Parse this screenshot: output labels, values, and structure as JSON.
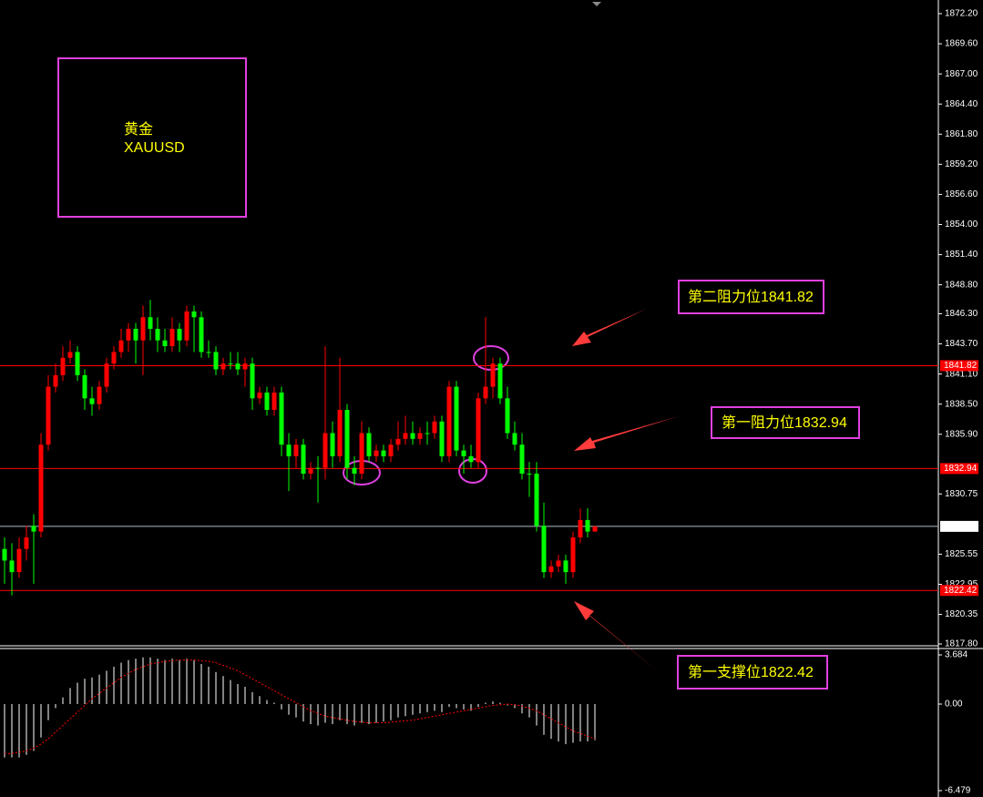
{
  "chart_data": [
    {
      "type": "candlestick",
      "title": "黄金",
      "subtitle": "XAUUSD",
      "up_color": "#ff0000",
      "down_color": "#00ff00",
      "ylim": [
        1817.8,
        1872.2
      ],
      "yticks": [
        {
          "value": 1872.2,
          "label": "1872.20"
        },
        {
          "value": 1869.6,
          "label": "1869.60"
        },
        {
          "value": 1867,
          "label": "1867.00"
        },
        {
          "value": 1864.4,
          "label": "1864.40"
        },
        {
          "value": 1861.8,
          "label": "1861.80"
        },
        {
          "value": 1859.2,
          "label": "1859.20"
        },
        {
          "value": 1856.6,
          "label": "1856.60"
        },
        {
          "value": 1854,
          "label": "1854.00"
        },
        {
          "value": 1851.4,
          "label": "1851.40"
        },
        {
          "value": 1848.8,
          "label": "1848.80"
        },
        {
          "value": 1846.3,
          "label": "1846.30"
        },
        {
          "value": 1843.7,
          "label": "1843.70"
        },
        {
          "value": 1841.1,
          "label": "1841.10"
        },
        {
          "value": 1838.5,
          "label": "1838.50"
        },
        {
          "value": 1835.9,
          "label": "1835.90"
        },
        1830.75,
        1825.55,
        1822.95,
        1820.35,
        {
          "value": 1817.8,
          "label": "1817.80"
        }
      ],
      "levels": [
        {
          "value": 1841.82,
          "color": "#ff0000"
        },
        {
          "value": 1832.94,
          "color": "#ff0000"
        },
        {
          "value": 1827.95,
          "color": "#ffffff"
        },
        {
          "value": 1822.42,
          "color": "#ff0000"
        }
      ],
      "annotations": [
        "第二阻力位1841.82",
        "第一阻力位1832.94",
        "第一支撑位1822.42"
      ],
      "candles": [
        [
          1826,
          1827,
          1823,
          1825
        ],
        [
          1825,
          1826.5,
          1822,
          1824
        ],
        [
          1824,
          1827,
          1823.5,
          1826
        ],
        [
          1826,
          1828,
          1825,
          1827
        ],
        [
          1828,
          1829,
          1823,
          1827.5
        ],
        [
          1827.5,
          1836,
          1827,
          1835
        ],
        [
          1835,
          1841,
          1834.5,
          1840
        ],
        [
          1840,
          1842,
          1839.5,
          1841
        ],
        [
          1841,
          1843.5,
          1840.5,
          1842.5
        ],
        [
          1842.5,
          1844,
          1842,
          1843
        ],
        [
          1843,
          1843.5,
          1840.5,
          1841
        ],
        [
          1841,
          1841.5,
          1838,
          1839
        ],
        [
          1839,
          1840,
          1837.5,
          1838.5
        ],
        [
          1838.5,
          1840.5,
          1838,
          1840
        ],
        [
          1840,
          1842.5,
          1839.5,
          1842
        ],
        [
          1842,
          1843.5,
          1841.5,
          1843
        ],
        [
          1843,
          1845,
          1842.5,
          1844
        ],
        [
          1844,
          1845.5,
          1843,
          1845
        ],
        [
          1845,
          1845.5,
          1842,
          1844
        ],
        [
          1844,
          1847,
          1841,
          1846
        ],
        [
          1846,
          1847.5,
          1844,
          1845
        ],
        [
          1845,
          1846,
          1843,
          1844
        ],
        [
          1844,
          1845,
          1843,
          1843.5
        ],
        [
          1843.5,
          1846,
          1843,
          1845
        ],
        [
          1845,
          1845.5,
          1843,
          1844
        ],
        [
          1844,
          1847,
          1843.5,
          1846.5
        ],
        [
          1846.5,
          1847,
          1843,
          1846
        ],
        [
          1846,
          1846.5,
          1842.5,
          1843
        ],
        [
          1843,
          1844,
          1842.5,
          1843
        ],
        [
          1843,
          1843.5,
          1841,
          1841.5
        ],
        [
          1841.5,
          1842.5,
          1841,
          1842
        ],
        [
          1842,
          1843,
          1841.5,
          1842
        ],
        [
          1842,
          1843,
          1841,
          1841.5
        ],
        [
          1841.5,
          1842.5,
          1840,
          1842
        ],
        [
          1842,
          1842.5,
          1838,
          1839
        ],
        [
          1839,
          1840,
          1838.5,
          1839.5
        ],
        [
          1839.5,
          1840,
          1837.5,
          1838
        ],
        [
          1838,
          1840,
          1837.5,
          1839.5
        ],
        [
          1839.5,
          1840,
          1834,
          1835
        ],
        [
          1835,
          1836,
          1831,
          1834
        ],
        [
          1834,
          1835.5,
          1833,
          1835
        ],
        [
          1835,
          1835.5,
          1832,
          1832.5
        ],
        [
          1832.5,
          1833.5,
          1832,
          1833
        ],
        [
          1833,
          1834,
          1830,
          1833
        ],
        [
          1833,
          1843.5,
          1832,
          1836
        ],
        [
          1836,
          1837,
          1833,
          1834
        ],
        [
          1834,
          1842.5,
          1833.5,
          1838
        ],
        [
          1838,
          1838.5,
          1832,
          1833
        ],
        [
          1833,
          1834,
          1831.5,
          1832.5
        ],
        [
          1832.5,
          1837,
          1832,
          1836
        ],
        [
          1836,
          1836.5,
          1833.5,
          1834
        ],
        [
          1834,
          1835,
          1833.5,
          1834.5
        ],
        [
          1834.5,
          1835,
          1833.5,
          1834
        ],
        [
          1834,
          1835.5,
          1833.5,
          1835
        ],
        [
          1835,
          1837,
          1834.5,
          1835.5
        ],
        [
          1835.5,
          1837.5,
          1835,
          1836
        ],
        [
          1836,
          1837,
          1835,
          1835.5
        ],
        [
          1835.5,
          1836.5,
          1835,
          1836
        ],
        [
          1836,
          1837,
          1835,
          1836
        ],
        [
          1836,
          1837.5,
          1835.5,
          1837
        ],
        [
          1837,
          1837.5,
          1833.5,
          1834
        ],
        [
          1834,
          1840.5,
          1833.5,
          1840
        ],
        [
          1840,
          1840.5,
          1834,
          1834.5
        ],
        [
          1834.5,
          1835,
          1832.5,
          1834
        ],
        [
          1834,
          1835,
          1833,
          1833.5
        ],
        [
          1833.5,
          1839.5,
          1833,
          1839
        ],
        [
          1839,
          1846,
          1838.5,
          1840
        ],
        [
          1840,
          1842.5,
          1839,
          1842
        ],
        [
          1842,
          1842.5,
          1838.5,
          1839
        ],
        [
          1839,
          1840,
          1835.5,
          1836
        ],
        [
          1836,
          1837,
          1834.5,
          1835
        ],
        [
          1835,
          1836,
          1832,
          1832.5
        ],
        [
          1832.5,
          1833.5,
          1830.5,
          1832.5
        ],
        [
          1832.5,
          1833.5,
          1827.5,
          1828
        ],
        [
          1828,
          1830,
          1823.5,
          1824
        ],
        [
          1824,
          1825,
          1823.5,
          1824.5
        ],
        [
          1824.5,
          1825.5,
          1824,
          1825
        ],
        [
          1825,
          1825.5,
          1823,
          1824
        ],
        [
          1824,
          1827.5,
          1823.5,
          1827
        ],
        [
          1827,
          1829.5,
          1826.5,
          1828.5
        ],
        [
          1828.5,
          1829.5,
          1827,
          1827.5
        ],
        [
          1827.5,
          1828,
          1827.5,
          1827.95
        ]
      ]
    },
    {
      "type": "macd",
      "ylim": [
        -6.479,
        3.684
      ],
      "yticks": [
        3.684,
        {
          "value": 0,
          "label": "0.00"
        },
        -6.479
      ],
      "series": [
        {
          "type": "bar",
          "color": "#ffffff",
          "values": [
            -4,
            -4,
            -4,
            -3.8,
            -3.5,
            -2.5,
            -1.2,
            -0.3,
            0.5,
            1.2,
            1.6,
            1.9,
            2.0,
            2.2,
            2.5,
            2.8,
            3.1,
            3.3,
            3.4,
            3.5,
            3.5,
            3.4,
            3.3,
            3.4,
            3.3,
            3.4,
            3.3,
            3.0,
            2.8,
            2.4,
            2.1,
            1.8,
            1.5,
            1.3,
            0.9,
            0.6,
            0.3,
            0.1,
            -0.4,
            -0.8,
            -1.0,
            -1.3,
            -1.5,
            -1.6,
            -1.4,
            -1.5,
            -1.2,
            -1.5,
            -1.6,
            -1.4,
            -1.5,
            -1.4,
            -1.3,
            -1.2,
            -1.0,
            -0.9,
            -0.8,
            -0.7,
            -0.6,
            -0.5,
            -0.6,
            -0.2,
            -0.3,
            -0.4,
            -0.5,
            -0.2,
            0.1,
            0.2,
            0.1,
            -0.1,
            -0.3,
            -0.7,
            -1.0,
            -1.6,
            -2.3,
            -2.6,
            -2.8,
            -3.0,
            -2.9,
            -2.8,
            -2.8,
            -2.7
          ]
        },
        {
          "type": "line",
          "color": "#ff0000",
          "values": [
            -3.7,
            -3.7,
            -3.6,
            -3.5,
            -3.3,
            -3.0,
            -2.6,
            -2.1,
            -1.6,
            -1.1,
            -0.6,
            -0.1,
            0.4,
            0.8,
            1.2,
            1.6,
            2.0,
            2.3,
            2.6,
            2.8,
            3.0,
            3.1,
            3.2,
            3.25,
            3.3,
            3.3,
            3.3,
            3.25,
            3.2,
            3.1,
            2.9,
            2.7,
            2.5,
            2.2,
            1.9,
            1.6,
            1.3,
            1.0,
            0.7,
            0.4,
            0.1,
            -0.2,
            -0.5,
            -0.7,
            -0.9,
            -1.0,
            -1.1,
            -1.2,
            -1.3,
            -1.35,
            -1.4,
            -1.4,
            -1.4,
            -1.35,
            -1.3,
            -1.25,
            -1.2,
            -1.1,
            -1.0,
            -0.9,
            -0.8,
            -0.7,
            -0.6,
            -0.5,
            -0.4,
            -0.3,
            -0.2,
            -0.1,
            -0.05,
            0,
            -0.05,
            -0.15,
            -0.3,
            -0.5,
            -0.8,
            -1.1,
            -1.4,
            -1.7,
            -2.0,
            -2.2,
            -2.4,
            -2.6
          ]
        }
      ]
    }
  ]
}
